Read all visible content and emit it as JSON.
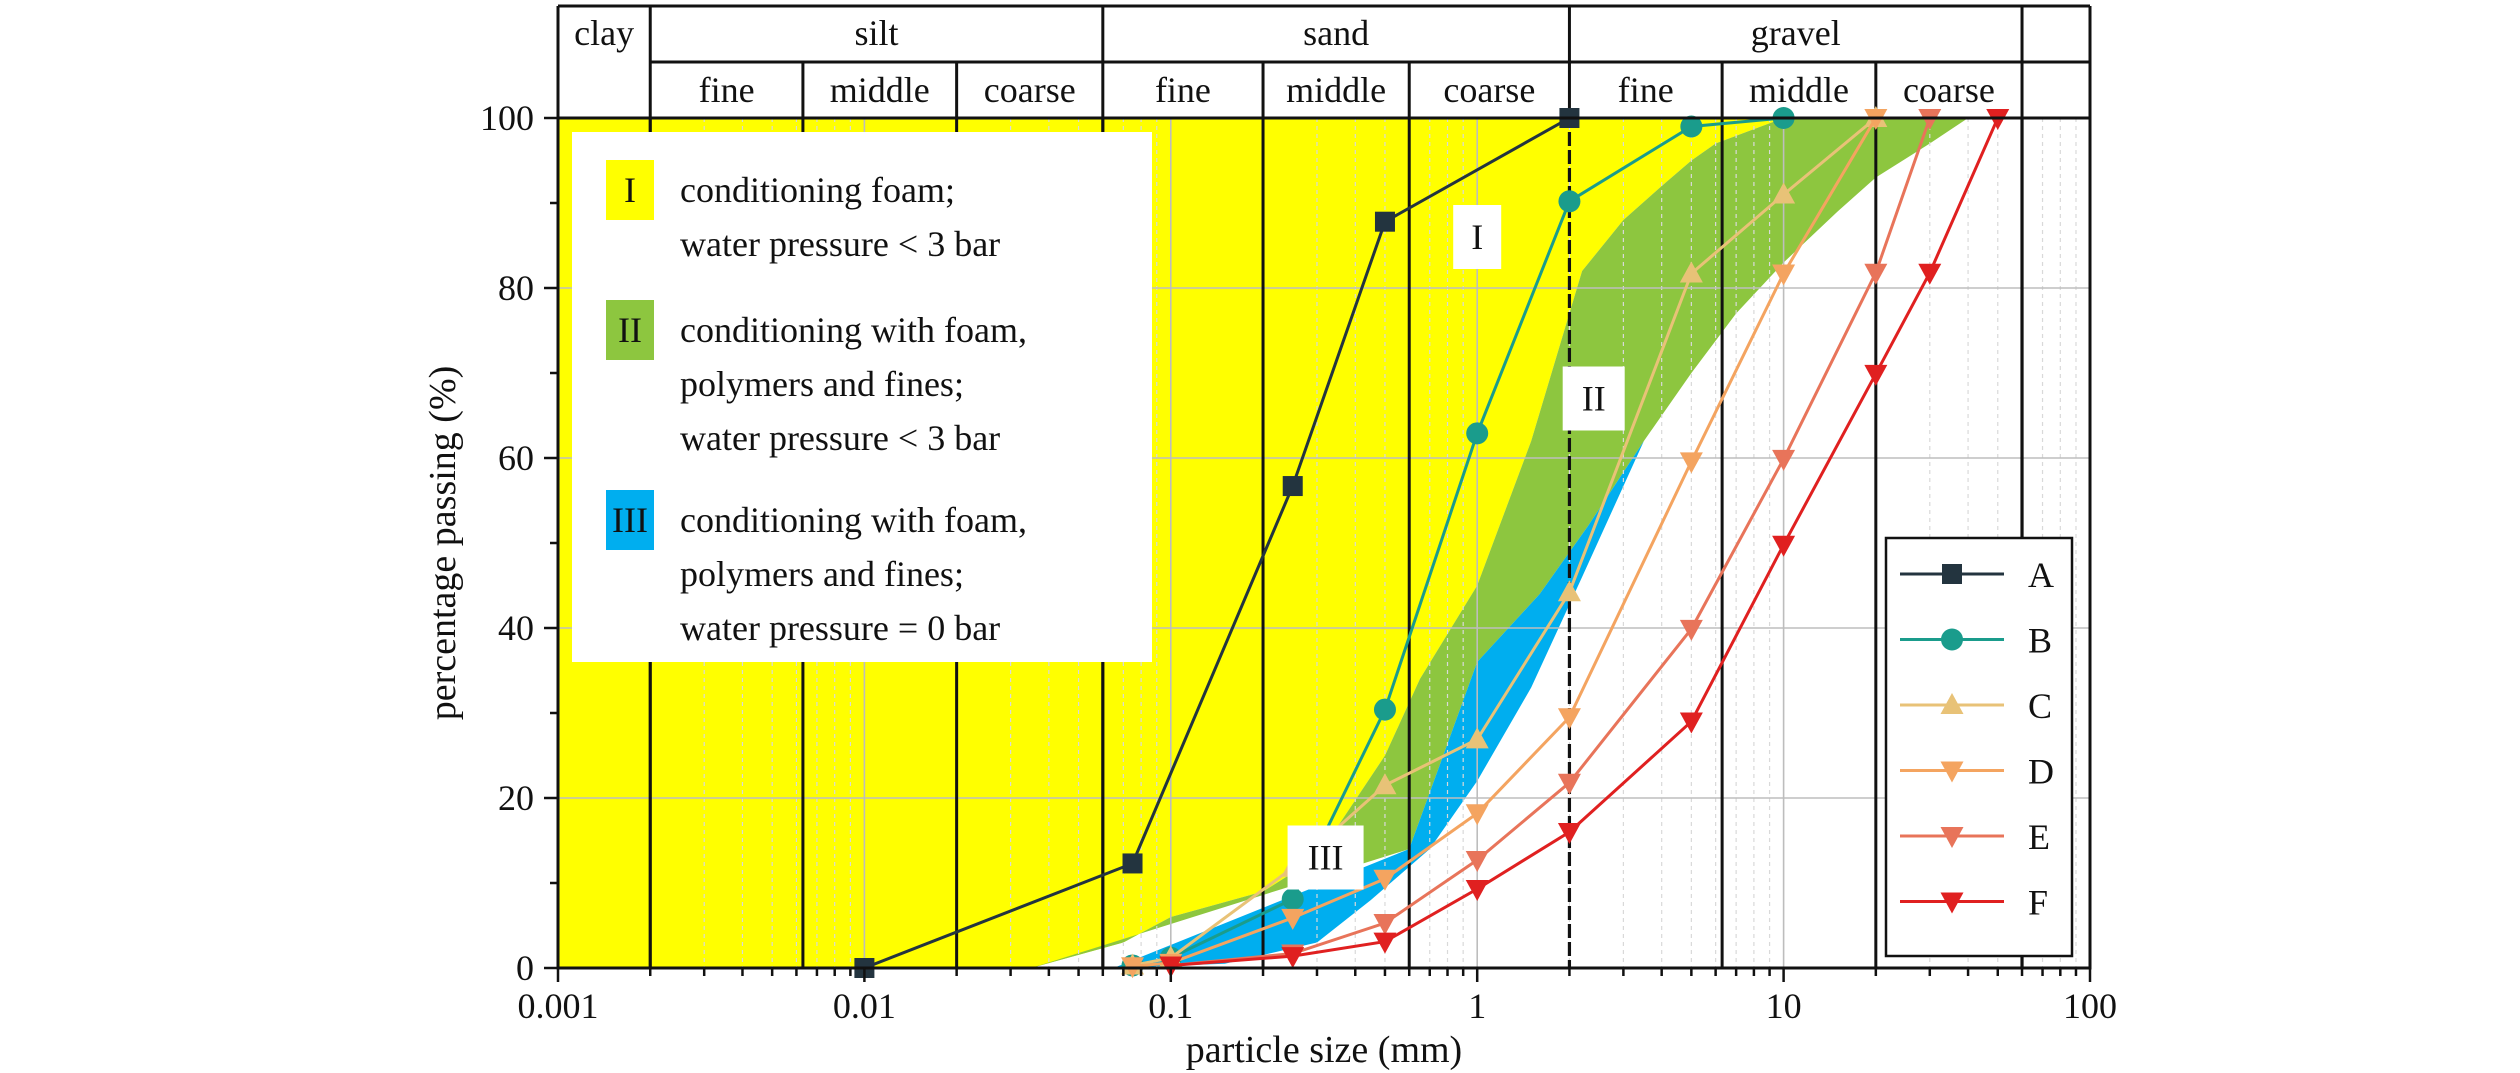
{
  "chart_data": {
    "type": "line",
    "title": "",
    "xlabel": "particle size (mm)",
    "ylabel": "percentage passing (%)",
    "xscale": "log",
    "xlim": [
      0.001,
      100
    ],
    "ylim": [
      0,
      100
    ],
    "x_ticks": [
      {
        "value": 0.001,
        "label": "0.001"
      },
      {
        "value": 0.01,
        "label": "0.01"
      },
      {
        "value": 0.1,
        "label": "0.1"
      },
      {
        "value": 1,
        "label": "1"
      },
      {
        "value": 10,
        "label": "10"
      },
      {
        "value": 100,
        "label": "100"
      }
    ],
    "y_ticks": [
      {
        "value": 0,
        "label": "0"
      },
      {
        "value": 20,
        "label": "20"
      },
      {
        "value": 40,
        "label": "40"
      },
      {
        "value": 60,
        "label": "60"
      },
      {
        "value": 80,
        "label": "80"
      },
      {
        "value": 100,
        "label": "100"
      }
    ],
    "grid": true,
    "soil_classes": [
      {
        "name": "clay",
        "from": 0.001,
        "to": 0.002
      },
      {
        "name": "silt",
        "from": 0.002,
        "to": 0.06
      },
      {
        "name": "sand",
        "from": 0.06,
        "to": 2
      },
      {
        "name": "gravel",
        "from": 2,
        "to": 60
      }
    ],
    "soil_subclasses": [
      {
        "name": "fine",
        "from": 0.002,
        "to": 0.0063
      },
      {
        "name": "middle",
        "from": 0.0063,
        "to": 0.02
      },
      {
        "name": "coarse",
        "from": 0.02,
        "to": 0.06
      },
      {
        "name": "fine",
        "from": 0.06,
        "to": 0.2
      },
      {
        "name": "middle",
        "from": 0.2,
        "to": 0.6
      },
      {
        "name": "coarse",
        "from": 0.6,
        "to": 2
      },
      {
        "name": "fine",
        "from": 2,
        "to": 6.3
      },
      {
        "name": "middle",
        "from": 6.3,
        "to": 20
      },
      {
        "name": "coarse",
        "from": 20,
        "to": 60
      }
    ],
    "zones": [
      {
        "id": "I",
        "label": "I",
        "description": [
          "conditioning foam;",
          "water pressure < 3 bar"
        ],
        "color": "#FFFF00",
        "label_at": [
          1.0,
          86
        ],
        "upper": [
          [
            0.001,
            100
          ],
          [
            2,
            100
          ]
        ],
        "lower": [
          [
            0.001,
            0
          ],
          [
            0.035,
            0
          ],
          [
            0.07,
            3
          ],
          [
            0.1,
            6
          ],
          [
            0.2,
            9
          ],
          [
            0.3,
            13
          ],
          [
            0.5,
            25
          ],
          [
            0.65,
            34
          ],
          [
            1,
            45
          ],
          [
            1.5,
            62
          ],
          [
            2.2,
            82
          ],
          [
            3,
            88
          ],
          [
            4,
            92
          ],
          [
            5,
            95
          ],
          [
            6,
            97
          ],
          [
            10,
            100
          ]
        ]
      },
      {
        "id": "II",
        "label": "II",
        "description": [
          "conditioning with foam,",
          "polymers and fines;",
          "water pressure < 3 bar"
        ],
        "color": "#8DC63F",
        "label_at": [
          2.4,
          67
        ],
        "upper": [
          [
            0.035,
            0
          ],
          [
            0.07,
            3
          ],
          [
            0.1,
            6
          ],
          [
            0.2,
            9
          ],
          [
            0.3,
            13
          ],
          [
            0.5,
            25
          ],
          [
            0.65,
            34
          ],
          [
            1,
            45
          ],
          [
            1.5,
            62
          ],
          [
            2.2,
            82
          ],
          [
            3,
            88
          ],
          [
            4,
            92
          ],
          [
            5,
            95
          ],
          [
            6,
            97
          ],
          [
            10,
            100
          ],
          [
            40,
            100
          ]
        ],
        "lower": [
          [
            0.6,
            14
          ],
          [
            1,
            36
          ],
          [
            1.6,
            44
          ],
          [
            2.3,
            52
          ],
          [
            3.5,
            62
          ],
          [
            5,
            70
          ],
          [
            7,
            77
          ],
          [
            10,
            83
          ],
          [
            15,
            89
          ],
          [
            20,
            93
          ],
          [
            30,
            97
          ],
          [
            40,
            100
          ]
        ]
      },
      {
        "id": "III",
        "label": "III",
        "description": [
          "conditioning with foam,",
          "polymers and fines;",
          "water pressure = 0 bar"
        ],
        "color": "#00AEEF",
        "label_at": [
          0.32,
          13
        ],
        "upper": [
          [
            0.6,
            14
          ],
          [
            1,
            36
          ],
          [
            1.6,
            44
          ],
          [
            2.3,
            52
          ],
          [
            3.5,
            62
          ]
        ],
        "lower": [
          [
            0.065,
            0
          ],
          [
            0.15,
            0.5
          ],
          [
            0.3,
            3
          ],
          [
            0.45,
            8
          ],
          [
            0.7,
            14
          ],
          [
            1,
            22
          ],
          [
            1.5,
            33
          ],
          [
            2.2,
            46
          ],
          [
            3.5,
            62
          ]
        ]
      }
    ],
    "series": [
      {
        "name": "A",
        "color": "#23343F",
        "marker": "square",
        "points": [
          [
            0.01,
            0
          ],
          [
            0.075,
            12.3
          ],
          [
            0.25,
            56.7
          ],
          [
            0.5,
            87.8
          ],
          [
            2,
            100
          ]
        ]
      },
      {
        "name": "B",
        "color": "#1A9C8C",
        "marker": "circle",
        "points": [
          [
            0.075,
            0.3
          ],
          [
            0.1,
            1.2
          ],
          [
            0.25,
            8.1
          ],
          [
            0.5,
            30.4
          ],
          [
            1,
            62.9
          ],
          [
            2,
            90.2
          ],
          [
            5,
            99
          ],
          [
            10,
            100
          ]
        ]
      },
      {
        "name": "C",
        "color": "#E8C277",
        "marker": "triangle-up",
        "points": [
          [
            0.075,
            0.3
          ],
          [
            0.1,
            1.2
          ],
          [
            0.25,
            11.8
          ],
          [
            0.5,
            21.5
          ],
          [
            1,
            26.9
          ],
          [
            2,
            44.2
          ],
          [
            5,
            81.7
          ],
          [
            10,
            91
          ],
          [
            20,
            100
          ]
        ]
      },
      {
        "name": "D",
        "color": "#F4A460",
        "marker": "triangle-down",
        "points": [
          [
            0.075,
            0.2
          ],
          [
            0.1,
            0.6
          ],
          [
            0.25,
            5.9
          ],
          [
            0.5,
            10.5
          ],
          [
            1,
            18.2
          ],
          [
            2,
            29.5
          ],
          [
            5,
            59.6
          ],
          [
            10,
            81.7
          ],
          [
            20,
            100
          ]
        ]
      },
      {
        "name": "E",
        "color": "#E8745A",
        "marker": "triangle-down",
        "points": [
          [
            0.1,
            0.3
          ],
          [
            0.25,
            1.7
          ],
          [
            0.5,
            5.3
          ],
          [
            1,
            12.7
          ],
          [
            2,
            21.8
          ],
          [
            5,
            39.9
          ],
          [
            10,
            59.9
          ],
          [
            20,
            81.8
          ],
          [
            30,
            100
          ]
        ]
      },
      {
        "name": "F",
        "color": "#E02020",
        "marker": "triangle-down",
        "points": [
          [
            0.1,
            0.3
          ],
          [
            0.25,
            1.4
          ],
          [
            0.5,
            3.1
          ],
          [
            1,
            9.3
          ],
          [
            2,
            16
          ],
          [
            5,
            29
          ],
          [
            10,
            49.8
          ],
          [
            20,
            69.9
          ],
          [
            30,
            81.8
          ],
          [
            50,
            100
          ]
        ]
      }
    ],
    "legend_position": "bottom-right"
  }
}
